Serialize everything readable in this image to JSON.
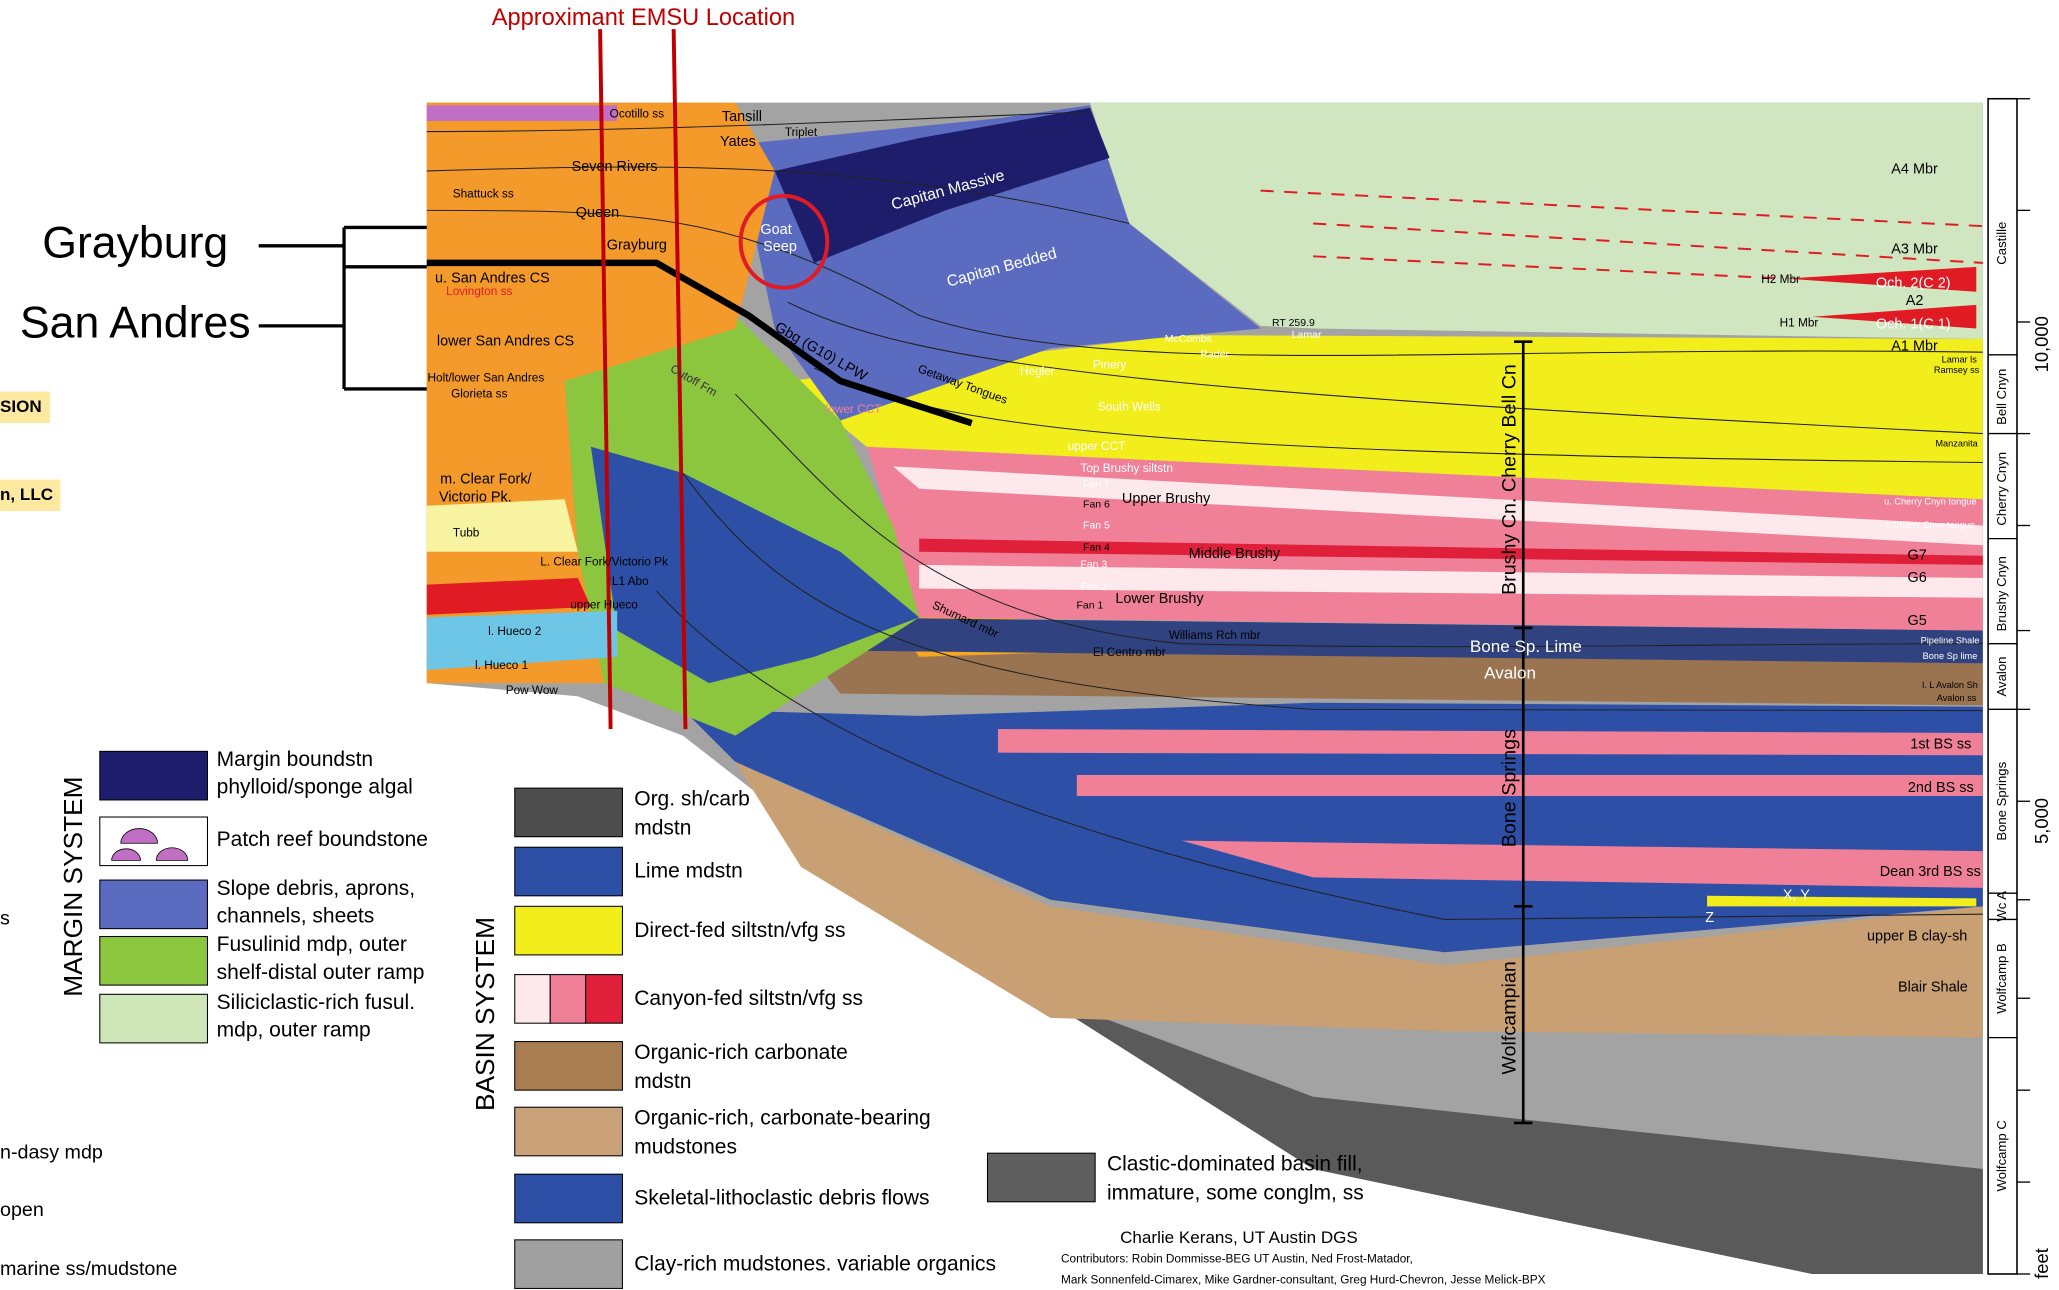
{
  "header": {
    "title": "Approximant EMSU Location"
  },
  "callouts": [
    "Grayburg",
    "San Andres"
  ],
  "cutoff_texts": [
    "SION",
    "n, LLC",
    "s",
    "n-dasy mdp",
    "open",
    "marine ss/mudstone"
  ],
  "section": {
    "labels": [
      "Tansill",
      "Yates",
      "Triplet",
      "Ocotillo ss",
      "Seven Rivers",
      "Shattuck ss",
      "Queen",
      "Grayburg",
      "u. San Andres CS",
      "Lovington ss",
      "lower San Andres CS",
      "Holt/lower San Andres",
      "Glorieta ss",
      "m. Clear Fork/",
      "Victorio Pk.",
      "Tubb",
      "L. Clear Fork/Victorio Pk",
      "L1 Abo",
      "upper Hueco",
      "l. Hueco 2",
      "l. Hueco 1",
      "Pow Wow",
      "Goat",
      "Seep",
      "Capitan Massive",
      "Capitan Bedded",
      "Gbg (G10) LPW",
      "Cutoff Fm",
      "lower CCT",
      "Getaway Tongues",
      "Hegler",
      "Pinery",
      "South Wells",
      "Rader",
      "McCombs",
      "Lamar",
      "RT 259.9",
      "upper CCT",
      "Top Brushy siltstn",
      "Fan 7",
      "Fan 6",
      "Upper Brushy",
      "Fan 5",
      "Fan 4",
      "Middle Brushy",
      "Fan 3",
      "Fan 2",
      "Fan 1",
      "Lower Brushy",
      "Williams Rch mbr",
      "Shumard mbr",
      "El Centro mbr",
      "Bone Sp. Lime",
      "Avalon",
      "A4 Mbr",
      "A3 Mbr",
      "A2",
      "A1 Mbr",
      "H2 Mbr",
      "H1 Mbr",
      "Och. 2(C 2)",
      "Och. 1(C 1)",
      "Lamar ls",
      "Ramsey ss",
      "Manzanita",
      "u. Cherry Cnyn tongue",
      "l. Cherry Cnyn tongue",
      "G7",
      "G6",
      "G5",
      "Pipeline Shale",
      "Bone Sp lime",
      "l. L Avalon Sh",
      "Avalon ss",
      "1st BS ss",
      "2nd BS ss",
      "Dean 3rd BS ss",
      "X, Y",
      "Z",
      "upper B clay-sh",
      "Blair Shale"
    ],
    "groups": [
      "Brushy Cn.  Cherry  Bell Cn",
      "Bone Springs",
      "Wolfcampian"
    ]
  },
  "column": {
    "units": [
      "Castille",
      "Bell Cnyn",
      "Cherry Cnyn",
      "Brushy Cnyn",
      "Avalon",
      "Bone Springs",
      "Wc A",
      "Wolfcamp B",
      "Wolfcamp C"
    ],
    "scale": [
      "10,000",
      "5,000",
      "feet"
    ]
  },
  "margin_legend": {
    "title": "MARGIN SYSTEM",
    "items": [
      {
        "lines": [
          "Margin boundstn",
          "phylloid/sponge algal"
        ]
      },
      {
        "lines": [
          "Patch reef boundstone"
        ]
      },
      {
        "lines": [
          "Slope debris, aprons,",
          "channels, sheets"
        ]
      },
      {
        "lines": [
          "Fusulinid mdp, outer",
          "shelf-distal outer ramp"
        ]
      },
      {
        "lines": [
          "Siliciclastic-rich fusul.",
          "mdp, outer ramp"
        ]
      }
    ]
  },
  "basin_legend": {
    "title": "BASIN SYSTEM",
    "items": [
      {
        "lines": [
          "Org. sh/carb",
          "mdstn"
        ]
      },
      {
        "lines": [
          "Lime mdstn"
        ]
      },
      {
        "lines": [
          "Direct-fed siltstn/vfg ss"
        ]
      },
      {
        "lines": [
          "Canyon-fed siltstn/vfg ss"
        ]
      },
      {
        "lines": [
          "Organic-rich carbonate",
          "mdstn"
        ]
      },
      {
        "lines": [
          "Organic-rich, carbonate-bearing",
          "mudstones"
        ]
      },
      {
        "lines": [
          "Skeletal-lithoclastic debris flows"
        ]
      },
      {
        "lines": [
          "Clay-rich mudstones. variable organics"
        ]
      },
      {
        "lines": [
          "Clastic-dominated basin fill,",
          "immature, some conglm, ss"
        ]
      }
    ]
  },
  "credits": {
    "author": "Charlie Kerans, UT Austin DGS",
    "contributors": [
      "Contributors:  Robin Dommisse-BEG UT Austin,  Ned Frost-Matador,",
      "Mark Sonnenfeld-Cimarex, Mike Gardner-consultant, Greg Hurd-Chevron, Jesse Melick-BPX"
    ]
  }
}
